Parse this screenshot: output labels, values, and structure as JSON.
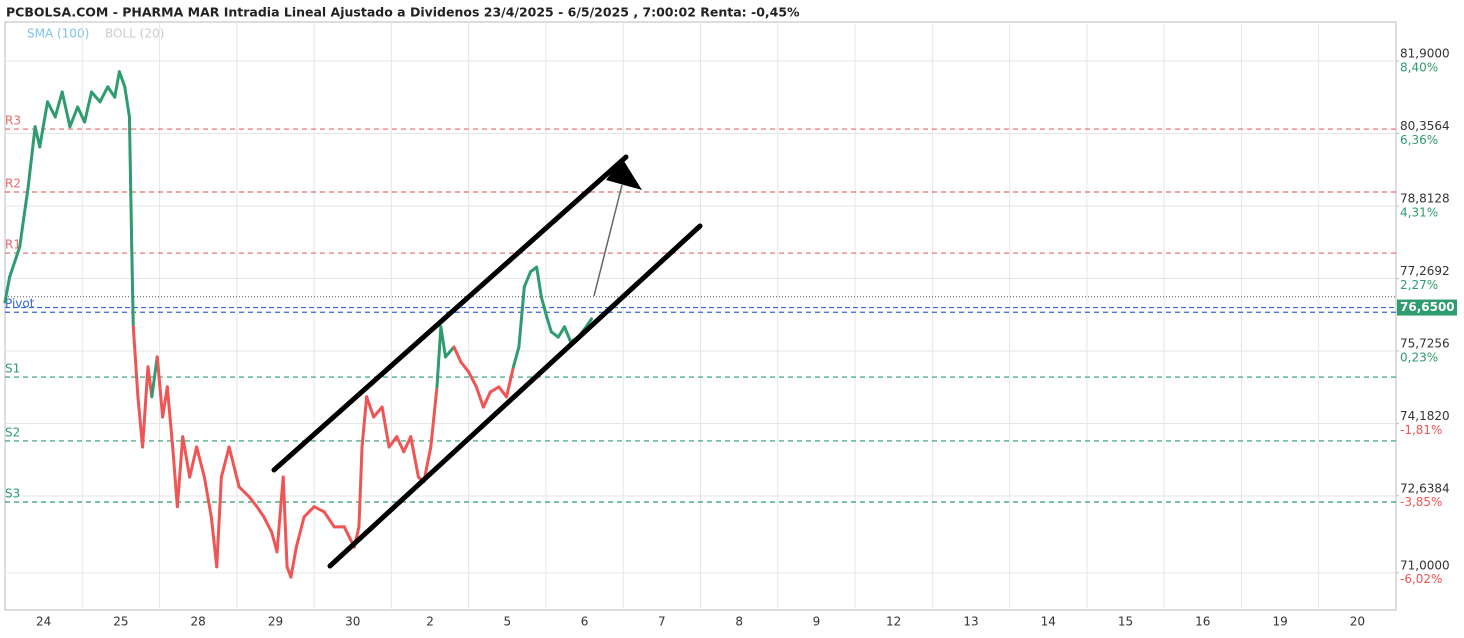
{
  "chart_data": {
    "type": "line",
    "title": "PCBOLSA.COM - PHARMA MAR Intradia Lineal Ajustado a Dividenos 23/4/2025 - 6/5/2025 , 7:00:02 Renta: -0,45%",
    "indicators": [
      {
        "name": "SMA (100)",
        "color": "#7cc4ea"
      },
      {
        "name": "BOLL (20)",
        "color": "#cccccc"
      }
    ],
    "categories": [
      "24",
      "25",
      "28",
      "29",
      "30",
      "2",
      "5",
      "6",
      "7",
      "8",
      "9",
      "12",
      "13",
      "14",
      "15",
      "16",
      "19",
      "20"
    ],
    "xlim": [
      0,
      18
    ],
    "ylim": [
      70.21,
      82.73
    ],
    "yticks": [
      {
        "value": 81.9,
        "label": "81,9000"
      },
      {
        "value": 80.3564,
        "label": "80,3564"
      },
      {
        "value": 78.8128,
        "label": "78,8128"
      },
      {
        "value": 77.2692,
        "label": "77,2692"
      },
      {
        "value": 75.7256,
        "label": "75,7256"
      },
      {
        "value": 74.182,
        "label": "74,1820"
      },
      {
        "value": 72.6384,
        "label": "72,6384"
      },
      {
        "value": 71.0,
        "label": "71,0000"
      }
    ],
    "y2lim": [
      -7.07,
      9.5
    ],
    "y2ticks": [
      {
        "value": 8.4,
        "label": "8,40%"
      },
      {
        "value": 6.36,
        "label": "6,36%"
      },
      {
        "value": 4.31,
        "label": "4,31%"
      },
      {
        "value": 2.27,
        "label": "2,27%"
      },
      {
        "value": 0.23,
        "label": "0,23%"
      },
      {
        "value": -1.81,
        "label": "-1,81%"
      },
      {
        "value": -3.85,
        "label": "-3,85%"
      },
      {
        "value": -6.02,
        "label": "-6,02%"
      }
    ],
    "levels": [
      {
        "label": "R3",
        "value": 80.45,
        "color": "#e86a6a"
      },
      {
        "label": "R2",
        "value": 79.11,
        "color": "#e86a6a"
      },
      {
        "label": "R1",
        "value": 77.81,
        "color": "#e86a6a"
      },
      {
        "label": "Pivot",
        "value": 76.55,
        "color": "#3366dd"
      },
      {
        "label": "S1",
        "value": 75.17,
        "color": "#2e9c6e"
      },
      {
        "label": "S2",
        "value": 73.81,
        "color": "#2e9c6e"
      },
      {
        "label": "S3",
        "value": 72.51,
        "color": "#2e9c6e"
      }
    ],
    "close_line": 76.88,
    "last_price": {
      "value": 76.65,
      "label": "76,6500",
      "color": "#2e9c6e"
    },
    "up_color": "#2e9c6e",
    "down_color": "#f05454",
    "grid": true,
    "series": [
      {
        "name": "PHARMA MAR",
        "x": [
          0,
          0.06,
          0.19,
          0.3,
          0.39,
          0.45,
          0.55,
          0.65,
          0.74,
          0.84,
          0.94,
          1.03,
          1.12,
          1.23,
          1.33,
          1.42,
          1.48,
          1.55,
          1.61,
          1.64,
          1.66,
          1.72,
          1.78,
          1.85,
          1.9,
          1.97,
          2.04,
          2.1,
          2.17,
          2.23,
          2.3,
          2.39,
          2.48,
          2.58,
          2.67,
          2.74,
          2.8,
          2.9,
          3.03,
          3.16,
          3.26,
          3.35,
          3.45,
          3.52,
          3.6,
          3.65,
          3.7,
          3.77,
          3.87,
          4.0,
          4.13,
          4.26,
          4.39,
          4.52,
          4.58,
          4.62,
          4.68,
          4.77,
          4.88,
          4.97,
          5.07,
          5.16,
          5.25,
          5.35,
          5.42,
          5.51,
          5.59,
          5.64,
          5.7,
          5.81,
          5.9,
          6.0,
          6.1,
          6.19,
          6.28,
          6.39,
          6.49,
          6.58,
          6.65,
          6.72,
          6.8,
          6.88,
          6.94,
          7.01,
          7.07,
          7.16,
          7.24,
          7.32,
          7.42,
          7.52,
          7.59
        ],
        "values": [
          76.77,
          77.3,
          77.94,
          79.22,
          80.5,
          80.07,
          81.03,
          80.71,
          81.24,
          80.5,
          80.92,
          80.6,
          81.24,
          81.03,
          81.35,
          81.13,
          81.67,
          81.35,
          80.71,
          77.94,
          76.24,
          74.75,
          73.68,
          75.39,
          74.75,
          75.6,
          74.32,
          74.96,
          73.68,
          72.41,
          73.9,
          73.04,
          73.68,
          73.04,
          72.19,
          71.13,
          73.04,
          73.68,
          72.83,
          72.62,
          72.41,
          72.19,
          71.87,
          71.45,
          73.04,
          71.13,
          70.91,
          71.55,
          72.19,
          72.41,
          72.3,
          71.98,
          71.98,
          71.55,
          71.98,
          73.68,
          74.75,
          74.32,
          74.53,
          73.68,
          73.9,
          73.58,
          73.9,
          73.04,
          72.94,
          73.68,
          74.96,
          76.24,
          75.6,
          75.81,
          75.49,
          75.28,
          74.96,
          74.53,
          74.85,
          74.96,
          74.75,
          75.39,
          75.81,
          77.09,
          77.41,
          77.51,
          76.88,
          76.45,
          76.13,
          76.02,
          76.24,
          75.92,
          76.02,
          76.24,
          76.41
        ]
      }
    ]
  }
}
